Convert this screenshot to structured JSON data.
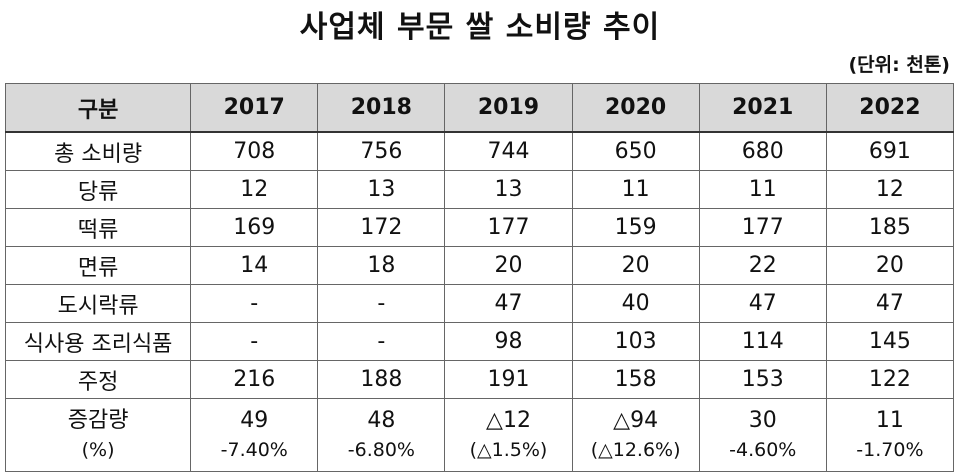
{
  "title": "사업체 부문 쌀 소비량 추이",
  "unit": "(단위: 천톤)",
  "table": {
    "headers": [
      "구분",
      "2017",
      "2018",
      "2019",
      "2020",
      "2021",
      "2022"
    ],
    "rows": [
      {
        "label": "총 소비량",
        "values": [
          "708",
          "756",
          "744",
          "650",
          "680",
          "691"
        ]
      },
      {
        "label": "당류",
        "values": [
          "12",
          "13",
          "13",
          "11",
          "11",
          "12"
        ]
      },
      {
        "label": "떡류",
        "values": [
          "169",
          "172",
          "177",
          "159",
          "177",
          "185"
        ]
      },
      {
        "label": "면류",
        "values": [
          "14",
          "18",
          "20",
          "20",
          "22",
          "20"
        ]
      },
      {
        "label": "도시락류",
        "values": [
          "-",
          "-",
          "47",
          "40",
          "47",
          "47"
        ]
      },
      {
        "label": "식사용 조리식품",
        "values": [
          "-",
          "-",
          "98",
          "103",
          "114",
          "145"
        ]
      },
      {
        "label": "주정",
        "values": [
          "216",
          "188",
          "191",
          "158",
          "153",
          "122"
        ]
      }
    ],
    "last_row": {
      "label": "증감량",
      "label_sub": "(%)",
      "values": [
        "49",
        "48",
        "△12",
        "△94",
        "30",
        "11"
      ],
      "pcts": [
        "-7.40%",
        "-6.80%",
        "(△1.5%)",
        "(△12.6%)",
        "-4.60%",
        "-1.70%"
      ]
    }
  }
}
